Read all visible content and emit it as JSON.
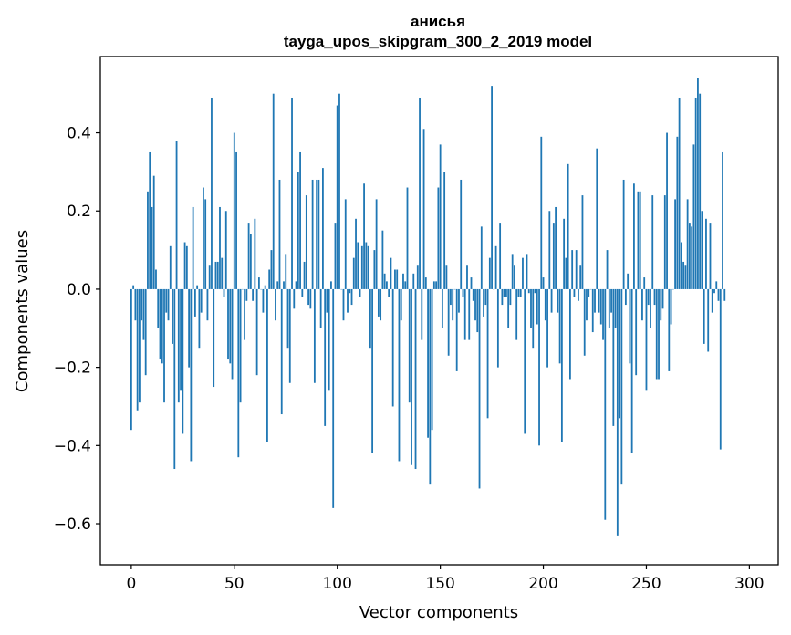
{
  "chart_data": {
    "type": "bar",
    "title_line1": "анисья",
    "title_line2": "tayga_upos_skipgram_300_2_2019 model",
    "xlabel": "Vector components",
    "ylabel": "Components values",
    "xlim": [
      -15,
      314
    ],
    "ylim": [
      -0.705,
      0.595
    ],
    "xticks": [
      0,
      50,
      100,
      150,
      200,
      250,
      300
    ],
    "xtick_labels": [
      "0",
      "50",
      "100",
      "150",
      "200",
      "250",
      "300"
    ],
    "yticks": [
      -0.6,
      -0.4,
      -0.2,
      0.0,
      0.2,
      0.4
    ],
    "ytick_labels": [
      "−0.6",
      "−0.4",
      "−0.2",
      "0.0",
      "0.2",
      "0.4"
    ],
    "bar_color": "#1f77b4",
    "values": [
      -0.36,
      0.01,
      -0.08,
      -0.31,
      -0.29,
      -0.08,
      -0.13,
      -0.22,
      0.25,
      0.35,
      0.21,
      0.29,
      0.05,
      -0.1,
      -0.18,
      -0.19,
      -0.29,
      -0.06,
      -0.08,
      0.11,
      -0.14,
      -0.46,
      0.38,
      -0.29,
      -0.26,
      -0.37,
      0.12,
      0.11,
      -0.2,
      -0.44,
      0.21,
      -0.07,
      0.01,
      -0.15,
      -0.06,
      0.26,
      0.23,
      -0.08,
      0.06,
      0.49,
      -0.25,
      0.07,
      0.07,
      0.21,
      0.08,
      -0.02,
      0.2,
      -0.18,
      -0.19,
      -0.23,
      0.4,
      0.35,
      -0.43,
      -0.29,
      0.0,
      -0.13,
      -0.03,
      0.17,
      0.14,
      -0.03,
      0.18,
      -0.22,
      0.03,
      0.0,
      -0.06,
      0.01,
      -0.39,
      0.05,
      0.1,
      0.5,
      -0.08,
      0.02,
      0.28,
      -0.32,
      0.02,
      0.09,
      -0.15,
      -0.24,
      0.49,
      -0.05,
      0.02,
      0.3,
      0.35,
      -0.02,
      0.07,
      0.24,
      -0.04,
      -0.05,
      0.28,
      -0.24,
      0.28,
      0.28,
      -0.1,
      0.31,
      -0.35,
      -0.06,
      -0.26,
      0.02,
      -0.56,
      0.17,
      0.47,
      0.5,
      0.0,
      -0.08,
      0.23,
      -0.06,
      -0.01,
      -0.04,
      0.08,
      0.18,
      0.12,
      -0.02,
      0.11,
      0.27,
      0.12,
      0.11,
      -0.15,
      -0.42,
      0.1,
      0.23,
      -0.07,
      -0.08,
      0.15,
      0.04,
      0.02,
      -0.02,
      0.08,
      -0.3,
      0.05,
      0.05,
      -0.44,
      -0.08,
      0.04,
      0.02,
      0.26,
      -0.29,
      -0.45,
      0.04,
      -0.46,
      0.06,
      0.49,
      -0.13,
      0.41,
      0.03,
      -0.38,
      -0.5,
      -0.36,
      0.02,
      0.02,
      0.26,
      0.37,
      -0.1,
      0.3,
      0.06,
      -0.17,
      -0.04,
      -0.08,
      0.0,
      -0.21,
      -0.06,
      0.28,
      -0.02,
      -0.13,
      0.06,
      -0.13,
      0.03,
      -0.03,
      -0.08,
      -0.11,
      -0.51,
      0.16,
      -0.07,
      -0.04,
      -0.33,
      0.08,
      0.52,
      0.0,
      0.11,
      -0.2,
      0.17,
      -0.04,
      -0.02,
      -0.02,
      -0.1,
      -0.04,
      0.09,
      0.06,
      -0.13,
      -0.02,
      -0.02,
      0.08,
      -0.37,
      0.09,
      -0.01,
      -0.1,
      -0.15,
      -0.01,
      -0.09,
      -0.4,
      0.39,
      0.03,
      -0.08,
      -0.2,
      0.2,
      -0.06,
      0.17,
      0.21,
      -0.06,
      -0.19,
      -0.39,
      0.18,
      0.08,
      0.32,
      -0.23,
      0.1,
      -0.02,
      0.1,
      -0.03,
      0.06,
      0.24,
      -0.17,
      -0.08,
      -0.02,
      0.0,
      -0.11,
      -0.06,
      0.36,
      -0.06,
      -0.09,
      -0.13,
      -0.59,
      0.1,
      -0.1,
      -0.06,
      -0.35,
      -0.1,
      -0.63,
      -0.33,
      -0.5,
      0.28,
      -0.04,
      0.04,
      -0.19,
      -0.42,
      0.27,
      -0.22,
      0.25,
      0.25,
      -0.08,
      0.03,
      -0.26,
      -0.04,
      -0.1,
      0.24,
      -0.04,
      -0.23,
      -0.23,
      -0.08,
      -0.05,
      0.24,
      0.4,
      -0.21,
      -0.09,
      0.0,
      0.23,
      0.39,
      0.49,
      0.12,
      0.07,
      0.06,
      0.23,
      0.17,
      0.16,
      0.37,
      0.49,
      0.54,
      0.5,
      0.2,
      -0.14,
      0.18,
      -0.16,
      0.17,
      -0.06,
      -0.01,
      0.02,
      -0.03,
      -0.41,
      0.35,
      -0.03
    ]
  }
}
